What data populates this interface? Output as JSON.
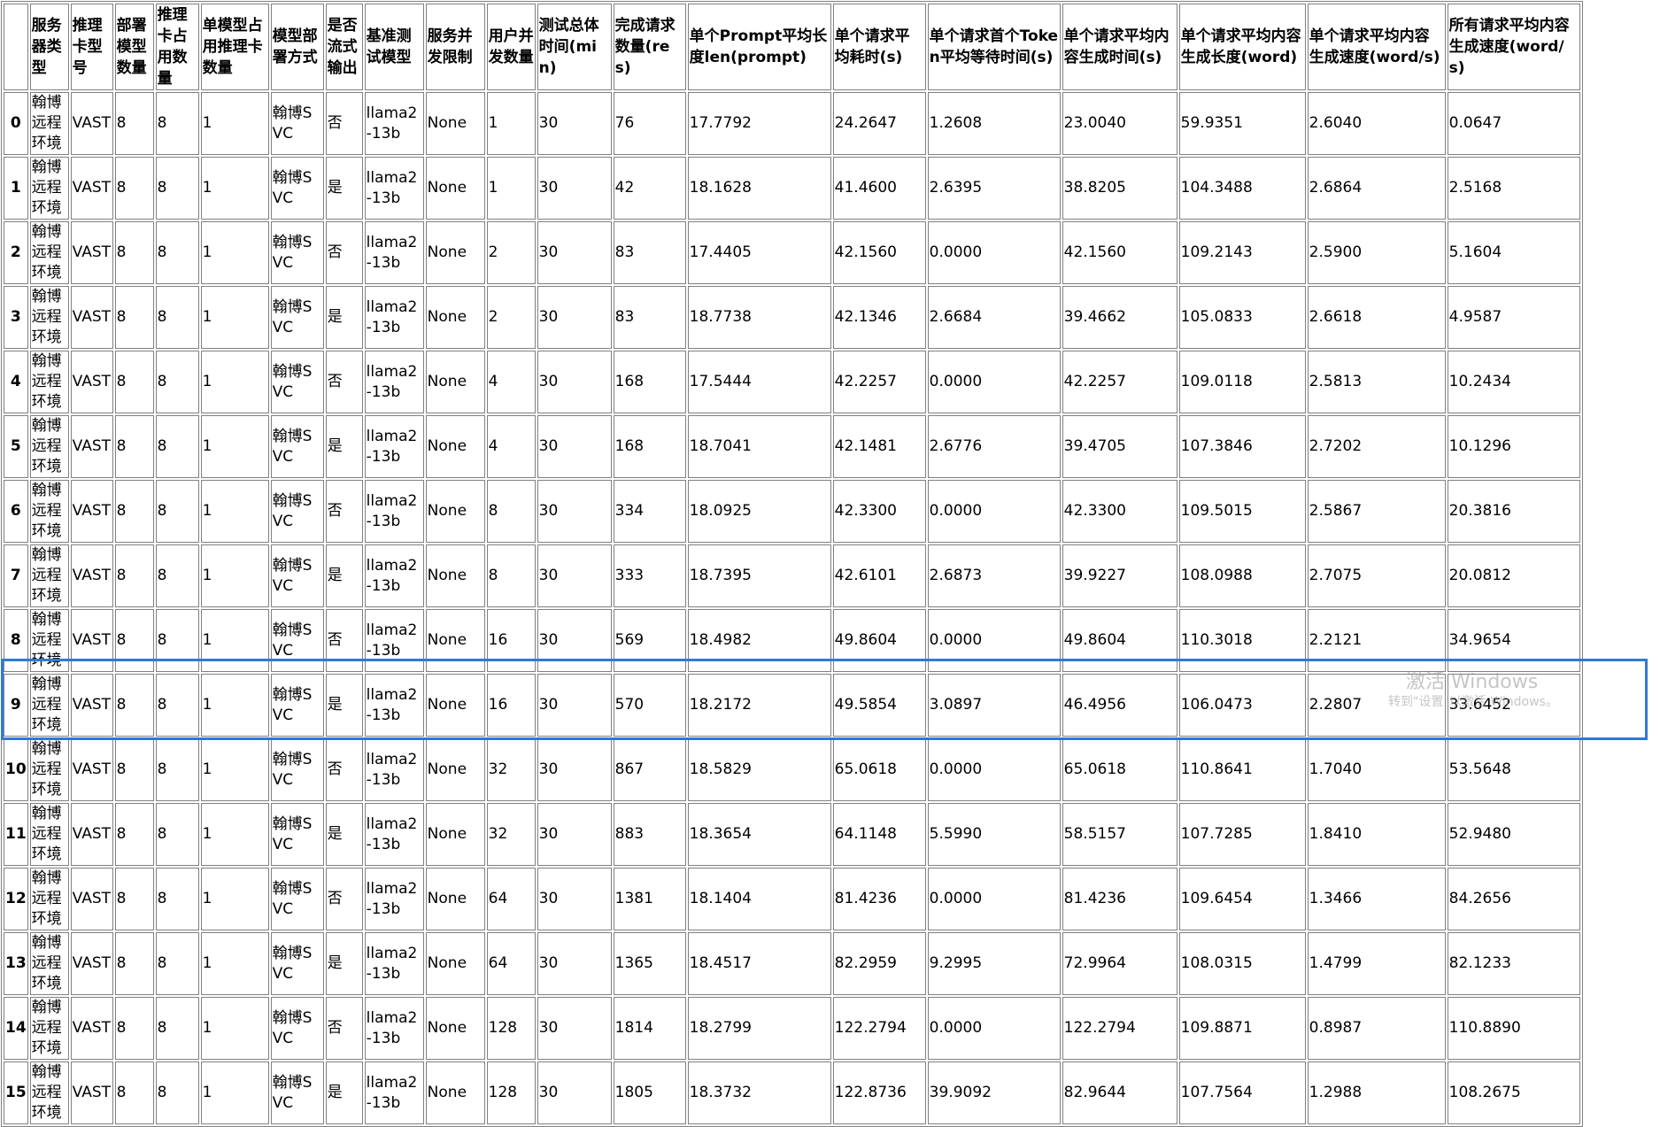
{
  "table": {
    "headers": [
      "",
      "服务器类型",
      "推理卡型号",
      "部署模型数量",
      "推理卡占用数量",
      "单模型占用推理卡数量",
      "模型部署方式",
      "是否流式输出",
      "基准测试模型",
      "服务并发限制",
      "用户并发数量",
      "测试总体时间(min)",
      "完成请求数量(res)",
      "单个Prompt平均长度len(prompt)",
      "单个请求平均耗时(s)",
      "单个请求首个Token平均等待时间(s)",
      "单个请求平均内容生成时间(s)",
      "单个请求平均内容生成长度(word)",
      "单个请求平均内容生成速度(word/s)",
      "所有请求平均内容生成速度(word/s)"
    ],
    "rows": [
      [
        "0",
        "翰博远程环境",
        "VAST",
        "8",
        "8",
        "1",
        "翰博SVC",
        "否",
        "llama2-13b",
        "None",
        "1",
        "30",
        "76",
        "17.7792",
        "24.2647",
        "1.2608",
        "23.0040",
        "59.9351",
        "2.6040",
        "0.0647"
      ],
      [
        "1",
        "翰博远程环境",
        "VAST",
        "8",
        "8",
        "1",
        "翰博SVC",
        "是",
        "llama2-13b",
        "None",
        "1",
        "30",
        "42",
        "18.1628",
        "41.4600",
        "2.6395",
        "38.8205",
        "104.3488",
        "2.6864",
        "2.5168"
      ],
      [
        "2",
        "翰博远程环境",
        "VAST",
        "8",
        "8",
        "1",
        "翰博SVC",
        "否",
        "llama2-13b",
        "None",
        "2",
        "30",
        "83",
        "17.4405",
        "42.1560",
        "0.0000",
        "42.1560",
        "109.2143",
        "2.5900",
        "5.1604"
      ],
      [
        "3",
        "翰博远程环境",
        "VAST",
        "8",
        "8",
        "1",
        "翰博SVC",
        "是",
        "llama2-13b",
        "None",
        "2",
        "30",
        "83",
        "18.7738",
        "42.1346",
        "2.6684",
        "39.4662",
        "105.0833",
        "2.6618",
        "4.9587"
      ],
      [
        "4",
        "翰博远程环境",
        "VAST",
        "8",
        "8",
        "1",
        "翰博SVC",
        "否",
        "llama2-13b",
        "None",
        "4",
        "30",
        "168",
        "17.5444",
        "42.2257",
        "0.0000",
        "42.2257",
        "109.0118",
        "2.5813",
        "10.2434"
      ],
      [
        "5",
        "翰博远程环境",
        "VAST",
        "8",
        "8",
        "1",
        "翰博SVC",
        "是",
        "llama2-13b",
        "None",
        "4",
        "30",
        "168",
        "18.7041",
        "42.1481",
        "2.6776",
        "39.4705",
        "107.3846",
        "2.7202",
        "10.1296"
      ],
      [
        "6",
        "翰博远程环境",
        "VAST",
        "8",
        "8",
        "1",
        "翰博SVC",
        "否",
        "llama2-13b",
        "None",
        "8",
        "30",
        "334",
        "18.0925",
        "42.3300",
        "0.0000",
        "42.3300",
        "109.5015",
        "2.5867",
        "20.3816"
      ],
      [
        "7",
        "翰博远程环境",
        "VAST",
        "8",
        "8",
        "1",
        "翰博SVC",
        "是",
        "llama2-13b",
        "None",
        "8",
        "30",
        "333",
        "18.7395",
        "42.6101",
        "2.6873",
        "39.9227",
        "108.0988",
        "2.7075",
        "20.0812"
      ],
      [
        "8",
        "翰博远程环境",
        "VAST",
        "8",
        "8",
        "1",
        "翰博SVC",
        "否",
        "llama2-13b",
        "None",
        "16",
        "30",
        "569",
        "18.4982",
        "49.8604",
        "0.0000",
        "49.8604",
        "110.3018",
        "2.2121",
        "34.9654"
      ],
      [
        "9",
        "翰博远程环境",
        "VAST",
        "8",
        "8",
        "1",
        "翰博SVC",
        "是",
        "llama2-13b",
        "None",
        "16",
        "30",
        "570",
        "18.2172",
        "49.5854",
        "3.0897",
        "46.4956",
        "106.0473",
        "2.2807",
        "33.6452"
      ],
      [
        "10",
        "翰博远程环境",
        "VAST",
        "8",
        "8",
        "1",
        "翰博SVC",
        "否",
        "llama2-13b",
        "None",
        "32",
        "30",
        "867",
        "18.5829",
        "65.0618",
        "0.0000",
        "65.0618",
        "110.8641",
        "1.7040",
        "53.5648"
      ],
      [
        "11",
        "翰博远程环境",
        "VAST",
        "8",
        "8",
        "1",
        "翰博SVC",
        "是",
        "llama2-13b",
        "None",
        "32",
        "30",
        "883",
        "18.3654",
        "64.1148",
        "5.5990",
        "58.5157",
        "107.7285",
        "1.8410",
        "52.9480"
      ],
      [
        "12",
        "翰博远程环境",
        "VAST",
        "8",
        "8",
        "1",
        "翰博SVC",
        "否",
        "llama2-13b",
        "None",
        "64",
        "30",
        "1381",
        "18.1404",
        "81.4236",
        "0.0000",
        "81.4236",
        "109.6454",
        "1.3466",
        "84.2656"
      ],
      [
        "13",
        "翰博远程环境",
        "VAST",
        "8",
        "8",
        "1",
        "翰博SVC",
        "是",
        "llama2-13b",
        "None",
        "64",
        "30",
        "1365",
        "18.4517",
        "82.2959",
        "9.2995",
        "72.9964",
        "108.0315",
        "1.4799",
        "82.1233"
      ],
      [
        "14",
        "翰博远程环境",
        "VAST",
        "8",
        "8",
        "1",
        "翰博SVC",
        "否",
        "llama2-13b",
        "None",
        "128",
        "30",
        "1814",
        "18.2799",
        "122.2794",
        "0.0000",
        "122.2794",
        "109.8871",
        "0.8987",
        "110.8890"
      ],
      [
        "15",
        "翰博远程环境",
        "VAST",
        "8",
        "8",
        "1",
        "翰博SVC",
        "是",
        "llama2-13b",
        "None",
        "128",
        "30",
        "1805",
        "18.3732",
        "122.8736",
        "39.9092",
        "82.9644",
        "107.7564",
        "1.2988",
        "108.2675"
      ]
    ]
  },
  "watermark": {
    "title": "激活 Windows",
    "subtitle": "转到\"设置\"以激活 Windows。"
  },
  "colors": {
    "highlight_border": "#2e7ad4",
    "grid_border": "#808080"
  }
}
